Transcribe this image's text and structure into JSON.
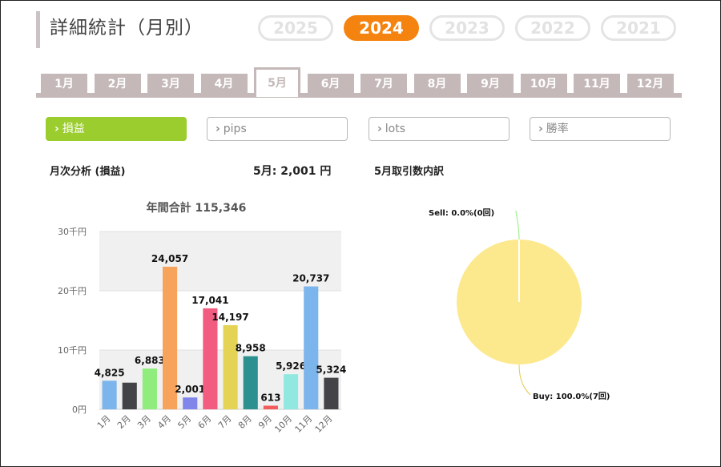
{
  "header": {
    "title": "詳細統計（月別）",
    "years": [
      {
        "label": "2025",
        "active": false
      },
      {
        "label": "2024",
        "active": true
      },
      {
        "label": "2023",
        "active": false
      },
      {
        "label": "2022",
        "active": false
      },
      {
        "label": "2021",
        "active": false
      }
    ]
  },
  "months": [
    "1月",
    "2月",
    "3月",
    "4月",
    "5月",
    "6月",
    "7月",
    "8月",
    "9月",
    "10月",
    "11月",
    "12月"
  ],
  "active_month_index": 4,
  "metrics": [
    {
      "label": "損益",
      "active": true
    },
    {
      "label": "pips",
      "active": false
    },
    {
      "label": "lots",
      "active": false
    },
    {
      "label": "勝率",
      "active": false
    }
  ],
  "subtitles": {
    "left": "月次分析 (損益)",
    "middle": "5月:  2,001 円",
    "right": "5月取引数内訳"
  },
  "colors": {
    "accent_orange": "#f5830f",
    "accent_green": "#9acd2d",
    "tab_gray": "#c4b8b8"
  },
  "chart_data": [
    {
      "type": "bar",
      "title": "年間合計 115,346",
      "categories": [
        "1月",
        "2月",
        "3月",
        "4月",
        "5月",
        "6月",
        "7月",
        "8月",
        "9月",
        "10月",
        "11月",
        "12月"
      ],
      "values": [
        4825,
        4500,
        6883,
        24057,
        2001,
        17041,
        14197,
        8958,
        613,
        5926,
        20737,
        5324
      ],
      "data_labels": [
        "4,825",
        "",
        "6,883",
        "24,057",
        "2,001",
        "17,041",
        "14,197",
        "8,958",
        "613",
        "5,926",
        "20,737",
        "5,324"
      ],
      "colors": [
        "#7cb5ec",
        "#434348",
        "#90ed7d",
        "#f7a35c",
        "#8085e9",
        "#f15c80",
        "#e4d354",
        "#2b908f",
        "#f45b5b",
        "#91e8e1",
        "#7cb5ec",
        "#434348"
      ],
      "yticks": [
        {
          "value": 0,
          "label": "0円"
        },
        {
          "value": 10000,
          "label": "10千円"
        },
        {
          "value": 20000,
          "label": "20千円"
        },
        {
          "value": 30000,
          "label": "30千円"
        }
      ],
      "ylim": [
        0,
        30000
      ],
      "grid": true
    },
    {
      "type": "pie",
      "slices": [
        {
          "label": "Sell: 0.0%(0回)",
          "value": 0,
          "color": "#90ed7d"
        },
        {
          "label": "Buy: 100.0%(7回)",
          "value": 100,
          "color": "#fce98e"
        }
      ]
    }
  ]
}
